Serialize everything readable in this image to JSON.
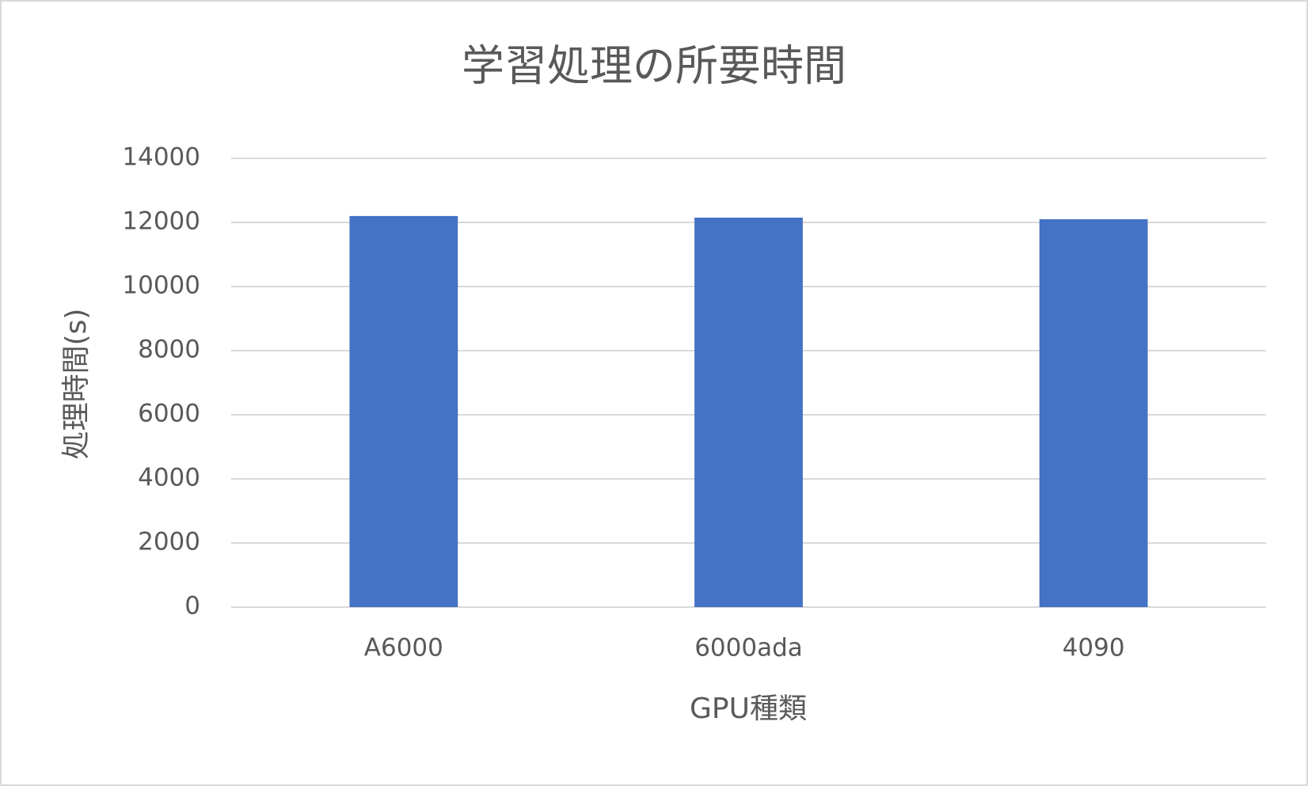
{
  "chart_data": {
    "type": "bar",
    "title": "学習処理の所要時間",
    "x_label": "GPU種類",
    "y_label": "処理時間(s)",
    "categories": [
      "A6000",
      "6000ada",
      "4090"
    ],
    "values": [
      12200,
      12150,
      12100
    ],
    "color": "#4472c4",
    "ylim": [
      0,
      14000
    ],
    "yticks": [
      0,
      2000,
      4000,
      6000,
      8000,
      10000,
      12000,
      14000
    ],
    "grid": true
  }
}
